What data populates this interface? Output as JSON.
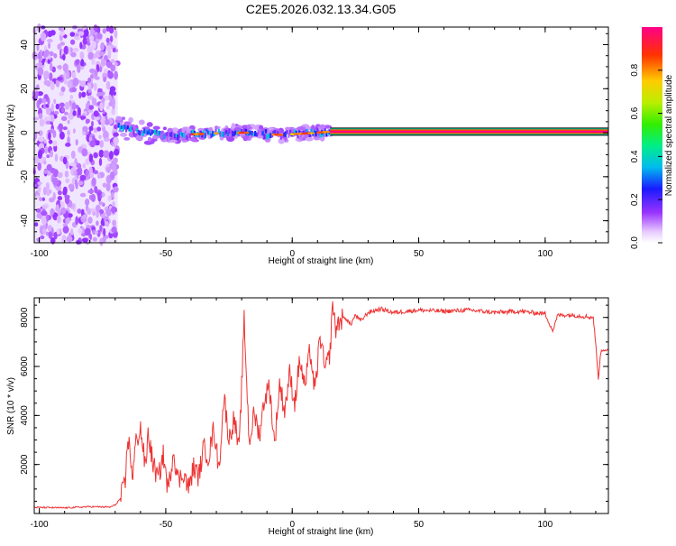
{
  "title": "C2E5.2026.032.13.34.G05",
  "chart_data": [
    {
      "type": "heatmap",
      "xlabel": "Height of straight line (km)",
      "ylabel": "Frequency (Hz)",
      "xlim": [
        -102,
        125
      ],
      "ylim": [
        -50,
        48
      ],
      "xticks": [
        -100,
        -50,
        0,
        50,
        100
      ],
      "yticks": [
        -40,
        -20,
        0,
        20,
        40
      ],
      "colorbar": {
        "label": "Normalized spectral amplitude",
        "range": [
          0,
          1
        ],
        "ticks": [
          "0.0",
          "0.2",
          "0.4",
          "0.6",
          "0.8"
        ],
        "tick_values": [
          0.0,
          0.2,
          0.4,
          0.6,
          0.8
        ]
      },
      "regions": [
        {
          "name": "noise",
          "x_range": [
            -102,
            -69
          ],
          "y_range": [
            -50,
            48
          ],
          "amplitude": [
            0.02,
            0.1
          ]
        },
        {
          "name": "weak-band",
          "x_range": [
            -69,
            15
          ],
          "freq_center": [
            [
              -68,
              3
            ],
            [
              -60,
              0
            ],
            [
              -45,
              -1
            ],
            [
              -25,
              0
            ],
            [
              -15,
              0
            ],
            [
              -5,
              -1
            ],
            [
              10,
              0
            ],
            [
              15,
              0.5
            ]
          ],
          "amplitude": [
            0.1,
            0.4
          ]
        },
        {
          "name": "steady-carrier",
          "x_range": [
            15,
            125
          ],
          "freq_center": 0.5,
          "amplitude": 1.0
        }
      ]
    },
    {
      "type": "line",
      "xlabel": "Height of straight line (km)",
      "ylabel": "SNR (10 * v/v)",
      "xlim": [
        -102,
        125
      ],
      "ylim": [
        0,
        8800
      ],
      "xticks": [
        -100,
        -50,
        0,
        50,
        100
      ],
      "yticks": [
        2000,
        4000,
        6000,
        8000
      ],
      "series": [
        {
          "color": "#ee3333",
          "x": [
            -102,
            -90,
            -80,
            -72,
            -70,
            -68,
            -66,
            -65,
            -63,
            -62,
            -60,
            -58,
            -57,
            -55,
            -53,
            -51,
            -49,
            -47,
            -45,
            -43,
            -41,
            -39,
            -37,
            -35,
            -33,
            -31,
            -29,
            -27,
            -25,
            -23,
            -21,
            -19,
            -17,
            -15,
            -13,
            -11,
            -9,
            -7,
            -5,
            -3,
            -1,
            1,
            3,
            5,
            7,
            9,
            11,
            13,
            15,
            16,
            17,
            19,
            21,
            23,
            25,
            27,
            30,
            35,
            40,
            50,
            60,
            70,
            80,
            90,
            100,
            103,
            105,
            110,
            115,
            119,
            120,
            121,
            122,
            123,
            125
          ],
          "y": [
            250,
            230,
            280,
            260,
            350,
            600,
            1200,
            3200,
            1500,
            2800,
            3500,
            1800,
            3300,
            2000,
            1400,
            2400,
            900,
            2600,
            1300,
            1700,
            1000,
            1900,
            1500,
            2700,
            2300,
            3500,
            1800,
            4800,
            3000,
            3900,
            2500,
            7900,
            2900,
            4100,
            3200,
            4700,
            5200,
            2800,
            5300,
            4200,
            5700,
            4500,
            6300,
            5100,
            6700,
            4900,
            7300,
            5800,
            6600,
            8700,
            7500,
            7900,
            8000,
            7700,
            8100,
            7850,
            8200,
            8350,
            8200,
            8300,
            8250,
            8300,
            8200,
            8250,
            8150,
            7450,
            8100,
            8100,
            8050,
            8000,
            6900,
            5500,
            6600,
            6700,
            6650
          ]
        }
      ]
    }
  ]
}
